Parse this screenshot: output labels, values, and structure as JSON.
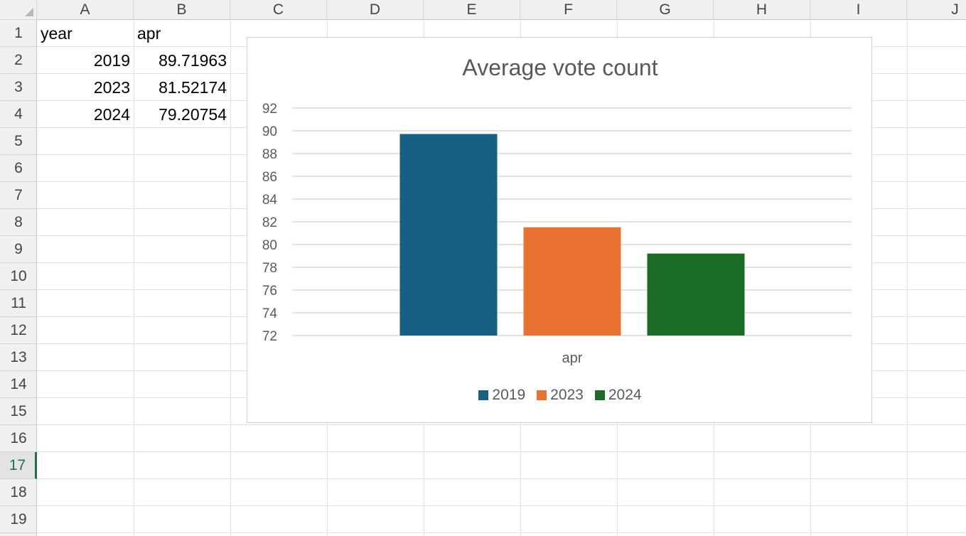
{
  "sheet": {
    "columns": [
      "A",
      "B",
      "C",
      "D",
      "E",
      "F",
      "G",
      "H",
      "I",
      "J"
    ],
    "rows": [
      "1",
      "2",
      "3",
      "4",
      "5",
      "6",
      "7",
      "8",
      "9",
      "10",
      "11",
      "12",
      "13",
      "14",
      "15",
      "16",
      "17",
      "18",
      "19"
    ],
    "active_row": "17",
    "cells": {
      "A1": "year",
      "B1": "apr",
      "A2": "2019",
      "B2": "89.71963",
      "A3": "2023",
      "B3": "81.52174",
      "A4": "2024",
      "B4": "79.20754"
    }
  },
  "chart_data": {
    "type": "bar",
    "title": "Average vote count",
    "categories": [
      "apr"
    ],
    "series": [
      {
        "name": "2019",
        "values": [
          89.71963
        ],
        "color": "#175f83"
      },
      {
        "name": "2023",
        "values": [
          81.52174
        ],
        "color": "#e97132"
      },
      {
        "name": "2024",
        "values": [
          79.20754
        ],
        "color": "#1a6b25"
      }
    ],
    "xlabel": "",
    "ylabel": "",
    "ylim": [
      72,
      92
    ],
    "yticks": [
      "72",
      "74",
      "76",
      "78",
      "80",
      "82",
      "84",
      "86",
      "88",
      "90",
      "92"
    ],
    "grid": true,
    "legend_position": "bottom"
  }
}
